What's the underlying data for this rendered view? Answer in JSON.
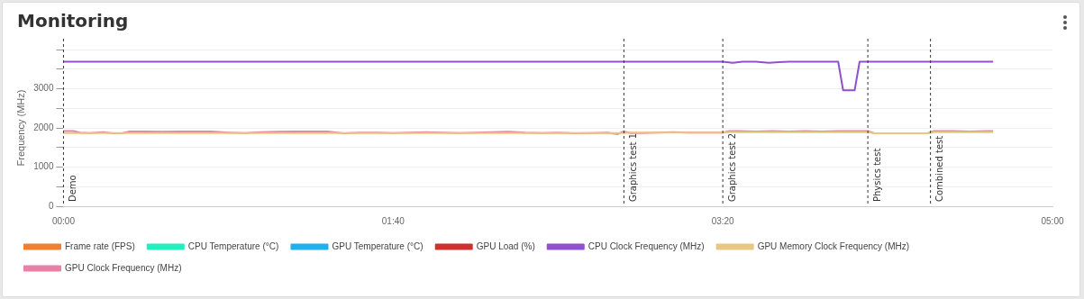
{
  "chart_data": {
    "type": "line",
    "title": "Monitoring",
    "ylabel": "Frequency (MHz)",
    "xlim": [
      0,
      300
    ],
    "xticks": [
      {
        "value": 0,
        "label": "00:00"
      },
      {
        "value": 100,
        "label": "01:40"
      },
      {
        "value": 200,
        "label": "03:20"
      },
      {
        "value": 300,
        "label": "05:00"
      }
    ],
    "ylim": [
      0,
      4000
    ],
    "yticks": [
      0,
      {
        "value": 500,
        "label": null
      },
      1000,
      {
        "value": 1500,
        "label": null
      },
      2000,
      {
        "value": 2500,
        "label": null
      },
      3000,
      {
        "value": 3500,
        "label": null
      },
      {
        "value": 4000,
        "label": null
      }
    ],
    "grid": "y",
    "legend": "bottom",
    "marker": "none",
    "line_style": "solid",
    "ref_lines": [
      {
        "axis": "x",
        "value": 0,
        "label": "Demo",
        "line_style": "dashed",
        "color": "#333333"
      },
      {
        "axis": "x",
        "value": 170,
        "label": "Graphics test 1",
        "line_style": "dashed",
        "color": "#333333"
      },
      {
        "axis": "x",
        "value": 200,
        "label": "Graphics test 2",
        "line_style": "dashed",
        "color": "#333333"
      },
      {
        "axis": "x",
        "value": 244,
        "label": "Physics test",
        "line_style": "dashed",
        "color": "#333333"
      },
      {
        "axis": "x",
        "value": 263,
        "label": "Combined test",
        "line_style": "dashed",
        "color": "#333333"
      }
    ],
    "series": [
      {
        "name": "Frame rate (FPS)",
        "color": "#f08030",
        "values": [
          null
        ]
      },
      {
        "name": "CPU Temperature (°C)",
        "color": "#20f0c0",
        "values": [
          null
        ]
      },
      {
        "name": "GPU Temperature (°C)",
        "color": "#20b0f0",
        "values": [
          null
        ]
      },
      {
        "name": "GPU Load (%)",
        "color": "#d03030",
        "values": [
          null
        ]
      },
      {
        "name": "CPU Clock Frequency (MHz)",
        "color": "#9050d0",
        "x": [
          0,
          100,
          200,
          203,
          206,
          210,
          214,
          217,
          220,
          225,
          230,
          235,
          236.5,
          240,
          241.5,
          243,
          260,
          282
        ],
        "values": [
          3690,
          3690,
          3690,
          3660,
          3690,
          3690,
          3660,
          3680,
          3690,
          3690,
          3690,
          3690,
          2960,
          2960,
          3690,
          3690,
          3690,
          3690
        ]
      },
      {
        "name": "GPU Memory Clock Frequency (MHz)",
        "color": "#e8c880",
        "x": [
          0,
          50,
          100,
          150,
          170,
          172,
          200,
          202,
          230,
          244,
          246,
          262,
          264,
          282
        ],
        "values": [
          1870,
          1870,
          1870,
          1870,
          1870,
          1880,
          1880,
          1890,
          1890,
          1890,
          1860,
          1860,
          1890,
          1890
        ]
      },
      {
        "name": "GPU Clock Frequency (MHz)",
        "color": "#e880a8",
        "x": [
          0,
          3,
          5,
          8,
          12,
          15,
          18,
          20,
          25,
          30,
          35,
          40,
          45,
          50,
          55,
          60,
          65,
          70,
          75,
          80,
          85,
          90,
          95,
          100,
          105,
          110,
          115,
          120,
          125,
          130,
          135,
          140,
          145,
          150,
          155,
          160,
          165,
          168,
          170,
          172,
          175,
          180,
          185,
          190,
          195,
          200,
          202,
          205,
          210,
          215,
          220,
          225,
          230,
          235,
          240,
          244,
          246,
          250,
          255,
          262,
          264,
          270,
          275,
          280,
          282
        ],
        "values": [
          1920,
          1920,
          1880,
          1870,
          1890,
          1860,
          1870,
          1910,
          1910,
          1900,
          1910,
          1910,
          1910,
          1880,
          1870,
          1890,
          1900,
          1910,
          1910,
          1910,
          1860,
          1880,
          1880,
          1870,
          1880,
          1890,
          1880,
          1870,
          1880,
          1890,
          1900,
          1880,
          1870,
          1880,
          1860,
          1870,
          1880,
          1840,
          1910,
          1870,
          1870,
          1880,
          1890,
          1880,
          1880,
          1880,
          1920,
          1920,
          1910,
          1920,
          1910,
          1920,
          1910,
          1920,
          1920,
          1920,
          1860,
          1860,
          1860,
          1860,
          1920,
          1920,
          1910,
          1920,
          1920
        ]
      }
    ]
  }
}
